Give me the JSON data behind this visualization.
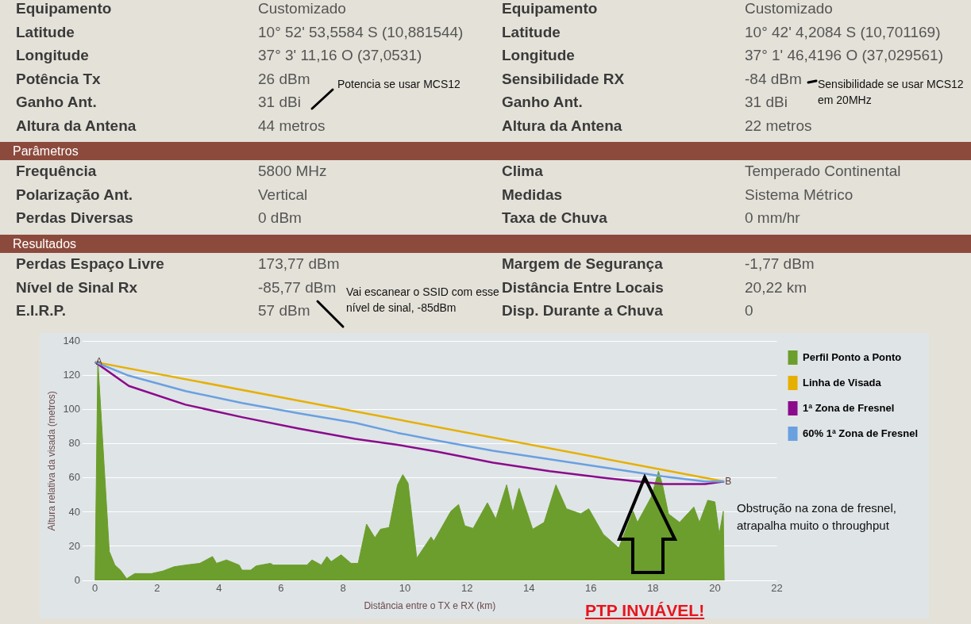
{
  "chart_data": [
    {
      "type": "other",
      "annotations": [
        "Equipamento",
        "Customizado",
        "Equipamento",
        "Customizado",
        "Latitude",
        "10° 52' 53,5584 S (10,881544)",
        "Latitude",
        "10° 42' 4,2084 S (10,701169)",
        "Longitude",
        "37° 3' 11,16 O (37,0531)",
        "Longitude",
        "37° 1' 46,4196 O (37,029561)",
        "Potência Tx",
        "26 dBm",
        "Sensibilidade RX",
        "-84 dBm",
        "Ganho Ant.",
        "31 dBi",
        "Ganho Ant.",
        "31 dBi",
        "Altura da Antena",
        "44 metros",
        "Altura da Antena",
        "22 metros"
      ]
    },
    {
      "type": "other",
      "title": "Parâmetros",
      "annotations": [
        "Frequência",
        "5800 MHz",
        "Clima",
        "Temperado Continental",
        "Polarização Ant.",
        "Vertical",
        "Medidas",
        "Sistema Métrico",
        "Perdas Diversas",
        "0 dBm",
        "Taxa de Chuva",
        "0 mm/hr"
      ]
    },
    {
      "type": "other",
      "title": "Resultados",
      "annotations": [
        "Perdas Espaço Livre",
        "173,77 dBm",
        "Margem de Segurança",
        "-1,77 dBm",
        "Nível de Sinal Rx",
        "-85,77 dBm",
        "Distância Entre Locais",
        "20,22 km",
        "E.I.R.P.",
        "57 dBm",
        "Disp. Durante a Chuva",
        "0"
      ]
    },
    {
      "type": "line",
      "xlabel": "Distância entre o TX e RX (km)",
      "ylabel": "Altura relativa da visada (metros)",
      "xlim": [
        -0.4,
        22
      ],
      "xticks": [
        0,
        2,
        4,
        6,
        8,
        10,
        12,
        14,
        16,
        18,
        20,
        22
      ],
      "ylim": [
        0,
        140
      ],
      "yticks": [
        0,
        20,
        40,
        60,
        80,
        100,
        120,
        140
      ],
      "grid": "y",
      "legend": "right",
      "marker": "none",
      "series": [
        {
          "name": "Perfil Ponto a Ponto",
          "type": "area",
          "color": "#6b9e2c",
          "x": [
            0,
            0.09,
            0.46,
            0.64,
            0.82,
            1.02,
            1.28,
            1.82,
            2.19,
            2.55,
            2.92,
            3.38,
            3.79,
            3.92,
            4.24,
            4.65,
            4.74,
            5.02,
            5.2,
            5.66,
            5.75,
            6.84,
            7.0,
            7.3,
            7.48,
            7.62,
            7.94,
            8.26,
            8.49,
            8.76,
            9.03,
            9.21,
            9.49,
            9.76,
            9.93,
            10.1,
            10.38,
            10.84,
            10.93,
            11.48,
            11.73,
            11.93,
            12.2,
            12.66,
            12.93,
            13.28,
            13.48,
            13.68,
            14.12,
            14.49,
            14.87,
            15.21,
            15.67,
            15.93,
            16.4,
            16.9,
            17.36,
            17.5,
            17.95,
            18.18,
            18.31,
            18.5,
            18.86,
            19.32,
            19.5,
            19.77,
            20.0,
            20.14,
            20.27,
            20.3
          ],
          "values": [
            0,
            129,
            17,
            9,
            6,
            1,
            4,
            4,
            5.5,
            8,
            9,
            10,
            14,
            10,
            12,
            9,
            6,
            6,
            8.5,
            10,
            9,
            9,
            12,
            9,
            14,
            11,
            15,
            10,
            10,
            33,
            25,
            30,
            31,
            56,
            62,
            57,
            13,
            25.5,
            23,
            40.5,
            44.5,
            32,
            30.5,
            45.5,
            36,
            56,
            40,
            54,
            30,
            34,
            56,
            42,
            39,
            42,
            27,
            19,
            40.5,
            34,
            49,
            64,
            56,
            39,
            34,
            43,
            34,
            47,
            46,
            27,
            40.5,
            0
          ]
        },
        {
          "name": "Linha de Visada",
          "type": "line",
          "color": "#e6b000",
          "x": [
            0,
            20.3
          ],
          "values": [
            128,
            58
          ]
        },
        {
          "name": "1ª Zona de Fresnel",
          "type": "line",
          "color": "#8b0a8b",
          "x": [
            0,
            1.09,
            2.92,
            4.74,
            6.57,
            8.39,
            9.76,
            11.02,
            12.84,
            14.67,
            16.49,
            18.31,
            19.68,
            20.3
          ],
          "values": [
            128,
            114,
            103,
            95.7,
            89,
            83,
            79.5,
            75.5,
            69,
            64,
            60,
            56.5,
            56.5,
            58
          ]
        },
        {
          "name": "60% 1ª Zona de Fresnel",
          "type": "line",
          "color": "#6aa0e0",
          "x": [
            0,
            1.09,
            2.92,
            4.74,
            6.57,
            8.39,
            9.76,
            11.02,
            12.84,
            14.67,
            16.49,
            18.31,
            19.68,
            20.3
          ],
          "values": [
            128,
            120,
            111,
            104,
            98,
            92.4,
            86.5,
            82,
            76,
            71,
            66,
            61,
            58,
            58
          ]
        }
      ],
      "annotations": [
        "Obstrução na zona de fresnel, atrapalha muito o throughput",
        "PTP INVIÁVEL!",
        "Potencia se usar MCS12",
        "Sensibilidade se usar MCS12 em 20MHz",
        "Vai escanear o SSID com esse nível de sinal, -85dBm",
        {
          "text": "A",
          "x": 0,
          "y": 128
        },
        {
          "text": "B",
          "x": 20.3,
          "y": 58
        }
      ]
    }
  ]
}
